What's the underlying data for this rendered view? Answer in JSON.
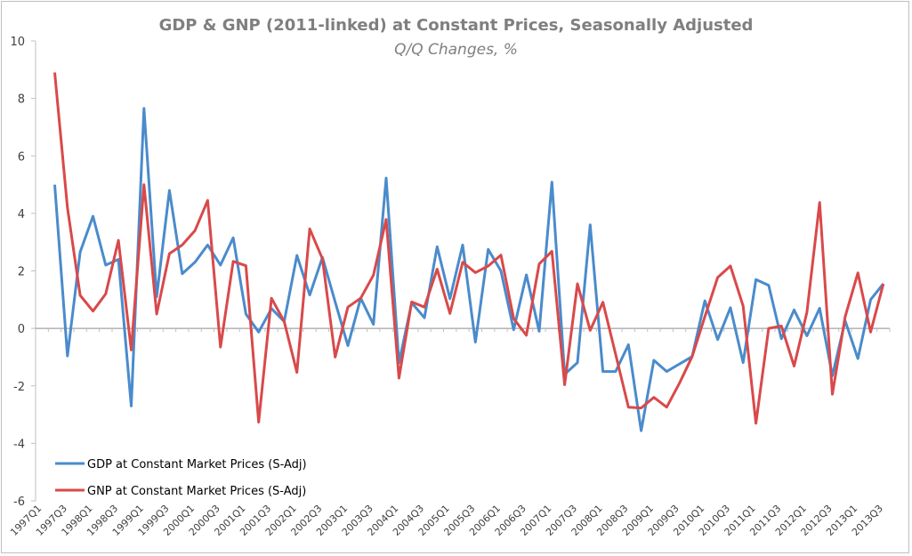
{
  "chart_data": {
    "type": "line",
    "title": "GDP & GNP (2011-linked) at Constant Prices, Seasonally Adjusted",
    "subtitle": "Q/Q Changes, %",
    "xlabel": "",
    "ylabel": "",
    "ylim": [
      -6,
      10
    ],
    "yticks": [
      10,
      8,
      6,
      4,
      2,
      0,
      -2,
      -4,
      -6
    ],
    "grid": false,
    "legend_position": "bottom-left",
    "categories": [
      "1997Q1",
      "1997Q2",
      "1997Q3",
      "1997Q4",
      "1998Q1",
      "1998Q2",
      "1998Q3",
      "1998Q4",
      "1999Q1",
      "1999Q2",
      "1999Q3",
      "1999Q4",
      "2000Q1",
      "2000Q2",
      "2000Q3",
      "2000Q4",
      "2001Q1",
      "2001Q2",
      "2001Q3",
      "2001Q4",
      "2002Q1",
      "2002Q2",
      "2002Q3",
      "2002Q4",
      "2003Q1",
      "2003Q2",
      "2003Q3",
      "2003Q4",
      "2004Q1",
      "2004Q2",
      "2004Q3",
      "2004Q4",
      "2005Q1",
      "2005Q2",
      "2005Q3",
      "2005Q4",
      "2006Q1",
      "2006Q2",
      "2006Q3",
      "2006Q4",
      "2007Q1",
      "2007Q2",
      "2007Q3",
      "2007Q4",
      "2008Q1",
      "2008Q2",
      "2008Q3",
      "2008Q4",
      "2009Q1",
      "2009Q2",
      "2009Q3",
      "2009Q4",
      "2010Q1",
      "2010Q2",
      "2010Q3",
      "2010Q4",
      "2011Q1",
      "2011Q2",
      "2011Q3",
      "2011Q4",
      "2012Q1",
      "2012Q2",
      "2012Q3",
      "2012Q4",
      "2013Q1",
      "2013Q2",
      "2013Q3"
    ],
    "series": [
      {
        "name": "GDP at Constant Market Prices (S-Adj)",
        "color": "#4a8bcc",
        "values": [
          null,
          5.0,
          -0.96,
          2.66,
          3.9,
          2.2,
          2.4,
          -2.7,
          7.65,
          1.1,
          4.8,
          1.9,
          2.3,
          2.9,
          2.2,
          3.15,
          0.5,
          -0.13,
          0.69,
          0.24,
          2.54,
          1.16,
          2.47,
          0.92,
          -0.6,
          1.05,
          0.14,
          5.23,
          -1.2,
          0.89,
          0.37,
          2.84,
          1.03,
          2.9,
          -0.48,
          2.75,
          2.0,
          -0.05,
          1.86,
          -0.1,
          5.09,
          -1.6,
          -1.19,
          3.6,
          -1.5,
          -1.5,
          -0.57,
          -3.56,
          -1.11,
          -1.5,
          -1.24,
          -0.98,
          0.96,
          -0.39,
          0.72,
          -1.19,
          1.7,
          1.5,
          -0.36,
          0.64,
          -0.26,
          0.7,
          -1.65,
          0.26,
          -1.05,
          1.0,
          1.55
        ]
      },
      {
        "name": "GNP at Constant Market Prices (S-Adj)",
        "color": "#d9494a",
        "values": [
          null,
          8.9,
          4.2,
          1.15,
          0.6,
          1.2,
          3.06,
          -0.75,
          5.0,
          0.5,
          2.6,
          2.9,
          3.4,
          4.45,
          -0.65,
          2.33,
          2.18,
          -3.26,
          1.05,
          0.24,
          -1.53,
          3.46,
          2.42,
          -1.0,
          0.74,
          1.05,
          1.85,
          3.79,
          -1.73,
          0.92,
          0.74,
          2.06,
          0.52,
          2.3,
          1.94,
          2.17,
          2.55,
          0.34,
          -0.24,
          2.24,
          2.68,
          -1.96,
          1.55,
          -0.07,
          0.91,
          -0.9,
          -2.74,
          -2.77,
          -2.4,
          -2.74,
          -1.91,
          -0.98,
          0.41,
          1.77,
          2.17,
          0.78,
          -3.3,
          0.0,
          0.08,
          -1.31,
          0.56,
          4.38,
          -2.29,
          0.41,
          1.93,
          -0.13,
          1.55
        ]
      }
    ]
  }
}
